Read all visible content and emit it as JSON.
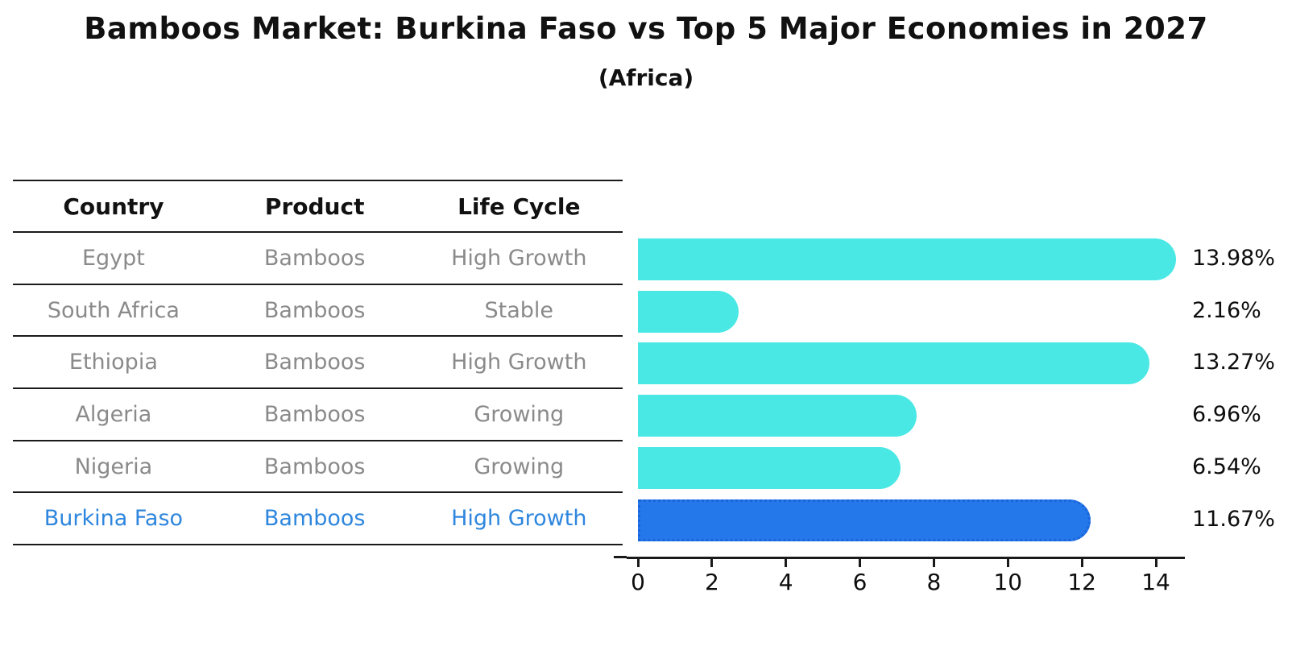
{
  "title": "Bamboos Market: Burkina Faso vs Top 5 Major Economies in 2027",
  "subtitle": "(Africa)",
  "table": {
    "headers": [
      "Country",
      "Product",
      "Life Cycle"
    ],
    "rows": [
      {
        "country": "Egypt",
        "product": "Bamboos",
        "life_cycle": "High Growth",
        "highlight": false
      },
      {
        "country": "South Africa",
        "product": "Bamboos",
        "life_cycle": "Stable",
        "highlight": false
      },
      {
        "country": "Ethiopia",
        "product": "Bamboos",
        "life_cycle": "High Growth",
        "highlight": false
      },
      {
        "country": "Algeria",
        "product": "Bamboos",
        "life_cycle": "Growing",
        "highlight": false
      },
      {
        "country": "Nigeria",
        "product": "Bamboos",
        "life_cycle": "Growing",
        "highlight": false
      },
      {
        "country": "Burkina Faso",
        "product": "Bamboos",
        "life_cycle": "High Growth",
        "highlight": true
      }
    ]
  },
  "chart_data": {
    "type": "bar",
    "orientation": "horizontal",
    "title": "Bamboos Market: Burkina Faso vs Top 5 Major Economies in 2027",
    "subtitle": "(Africa)",
    "categories": [
      "Egypt",
      "South Africa",
      "Ethiopia",
      "Algeria",
      "Nigeria",
      "Burkina Faso"
    ],
    "values": [
      13.98,
      2.16,
      13.27,
      6.96,
      6.54,
      11.67
    ],
    "value_labels": [
      "13.98%",
      "2.16%",
      "13.27%",
      "6.96%",
      "6.54%",
      "11.67%"
    ],
    "unit": "%",
    "highlight_index": 5,
    "x_ticks": [
      0,
      2,
      4,
      6,
      8,
      10,
      12,
      14
    ],
    "xlim": [
      0,
      14.8
    ],
    "xlabel": "",
    "ylabel": "",
    "grid": false,
    "legend": false,
    "bar_color": "#4AE8E5",
    "highlight_bar_color": "#2478EA"
  },
  "colors": {
    "bar_cyan": "#4AE8E5",
    "bar_blue": "#2478EA",
    "highlight_border": "#1B64DC",
    "highlight_text": "#2E86DE",
    "muted_text": "#8A8A8A",
    "line": "#1A1A1A"
  }
}
